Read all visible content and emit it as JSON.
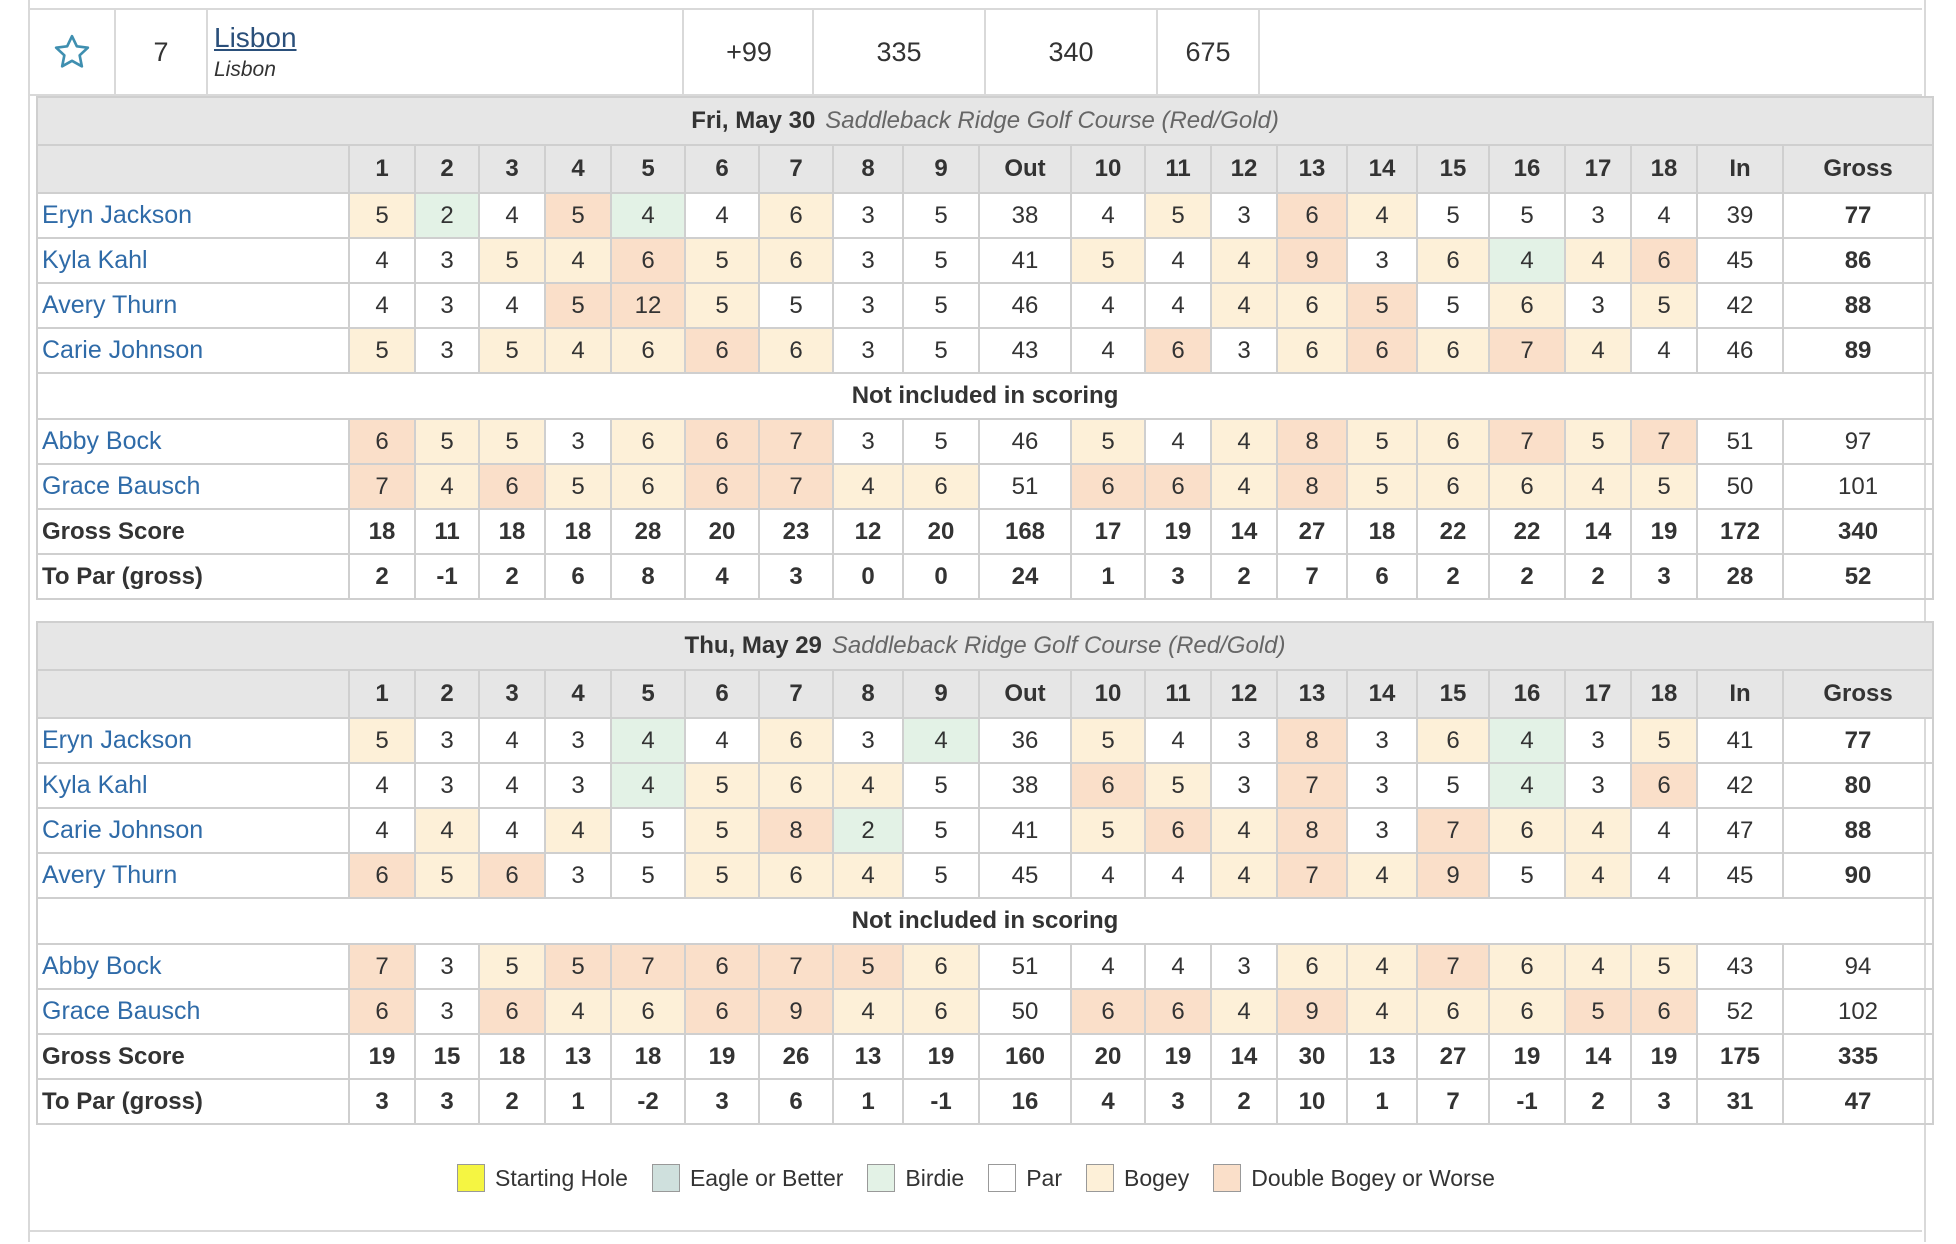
{
  "team": {
    "position": "7",
    "name": "Lisbon",
    "location": "Lisbon",
    "to_par": "+99",
    "round1": "335",
    "round2": "340",
    "total": "675"
  },
  "headers": [
    "1",
    "2",
    "3",
    "4",
    "5",
    "6",
    "7",
    "8",
    "9",
    "Out",
    "10",
    "11",
    "12",
    "13",
    "14",
    "15",
    "16",
    "17",
    "18",
    "In",
    "Gross"
  ],
  "not_included_label": "Not included in scoring",
  "gross_label": "Gross Score",
  "topar_label": "To Par (gross)",
  "rounds": [
    {
      "date": "Fri, May 30",
      "course": "Saddleback Ridge Golf Course (Red/Gold)",
      "players": [
        {
          "name": "Eryn Jackson",
          "scores": [
            "5",
            "2",
            "4",
            "5",
            "4",
            "4",
            "6",
            "3",
            "5",
            "38",
            "4",
            "5",
            "3",
            "6",
            "4",
            "5",
            "5",
            "3",
            "4",
            "39",
            "77"
          ],
          "c": [
            "b",
            "r",
            "p",
            "d",
            "r",
            "p",
            "b",
            "p",
            "p",
            "x",
            "p",
            "b",
            "p",
            "d",
            "b",
            "p",
            "p",
            "p",
            "p",
            "x",
            "x"
          ]
        },
        {
          "name": "Kyla Kahl",
          "scores": [
            "4",
            "3",
            "5",
            "4",
            "6",
            "5",
            "6",
            "3",
            "5",
            "41",
            "5",
            "4",
            "4",
            "9",
            "3",
            "6",
            "4",
            "4",
            "6",
            "45",
            "86"
          ],
          "c": [
            "p",
            "p",
            "b",
            "b",
            "d",
            "b",
            "b",
            "p",
            "p",
            "x",
            "b",
            "p",
            "b",
            "d",
            "p",
            "b",
            "r",
            "b",
            "d",
            "x",
            "x"
          ]
        },
        {
          "name": "Avery Thurn",
          "scores": [
            "4",
            "3",
            "4",
            "5",
            "12",
            "5",
            "5",
            "3",
            "5",
            "46",
            "4",
            "4",
            "4",
            "6",
            "5",
            "5",
            "6",
            "3",
            "5",
            "42",
            "88"
          ],
          "c": [
            "p",
            "p",
            "p",
            "d",
            "d",
            "b",
            "p",
            "p",
            "p",
            "x",
            "p",
            "p",
            "b",
            "b",
            "d",
            "p",
            "b",
            "p",
            "b",
            "x",
            "x"
          ]
        },
        {
          "name": "Carie Johnson",
          "scores": [
            "5",
            "3",
            "5",
            "4",
            "6",
            "6",
            "6",
            "3",
            "5",
            "43",
            "4",
            "6",
            "3",
            "6",
            "6",
            "6",
            "7",
            "4",
            "4",
            "46",
            "89"
          ],
          "c": [
            "b",
            "p",
            "b",
            "b",
            "b",
            "d",
            "b",
            "p",
            "p",
            "x",
            "p",
            "d",
            "p",
            "b",
            "d",
            "b",
            "d",
            "b",
            "p",
            "x",
            "x"
          ]
        }
      ],
      "extra": [
        {
          "name": "Abby Bock",
          "scores": [
            "6",
            "5",
            "5",
            "3",
            "6",
            "6",
            "7",
            "3",
            "5",
            "46",
            "5",
            "4",
            "4",
            "8",
            "5",
            "6",
            "7",
            "5",
            "7",
            "51",
            "97"
          ],
          "c": [
            "d",
            "b",
            "b",
            "p",
            "b",
            "d",
            "d",
            "p",
            "p",
            "x",
            "b",
            "p",
            "b",
            "d",
            "b",
            "b",
            "d",
            "b",
            "d",
            "x",
            "x"
          ]
        },
        {
          "name": "Grace Bausch",
          "scores": [
            "7",
            "4",
            "6",
            "5",
            "6",
            "6",
            "7",
            "4",
            "6",
            "51",
            "6",
            "6",
            "4",
            "8",
            "5",
            "6",
            "6",
            "4",
            "5",
            "50",
            "101"
          ],
          "c": [
            "d",
            "b",
            "d",
            "b",
            "b",
            "d",
            "d",
            "b",
            "b",
            "x",
            "d",
            "d",
            "b",
            "d",
            "b",
            "b",
            "b",
            "b",
            "b",
            "x",
            "x"
          ]
        }
      ],
      "gross": [
        "18",
        "11",
        "18",
        "18",
        "28",
        "20",
        "23",
        "12",
        "20",
        "168",
        "17",
        "19",
        "14",
        "27",
        "18",
        "22",
        "22",
        "14",
        "19",
        "172",
        "340"
      ],
      "topar": [
        "2",
        "-1",
        "2",
        "6",
        "8",
        "4",
        "3",
        "0",
        "0",
        "24",
        "1",
        "3",
        "2",
        "7",
        "6",
        "2",
        "2",
        "2",
        "3",
        "28",
        "52"
      ]
    },
    {
      "date": "Thu, May 29",
      "course": "Saddleback Ridge Golf Course (Red/Gold)",
      "players": [
        {
          "name": "Eryn Jackson",
          "scores": [
            "5",
            "3",
            "4",
            "3",
            "4",
            "4",
            "6",
            "3",
            "4",
            "36",
            "5",
            "4",
            "3",
            "8",
            "3",
            "6",
            "4",
            "3",
            "5",
            "41",
            "77"
          ],
          "c": [
            "b",
            "p",
            "p",
            "p",
            "r",
            "p",
            "b",
            "p",
            "r",
            "x",
            "b",
            "p",
            "p",
            "d",
            "p",
            "b",
            "r",
            "p",
            "b",
            "x",
            "x"
          ]
        },
        {
          "name": "Kyla Kahl",
          "scores": [
            "4",
            "3",
            "4",
            "3",
            "4",
            "5",
            "6",
            "4",
            "5",
            "38",
            "6",
            "5",
            "3",
            "7",
            "3",
            "5",
            "4",
            "3",
            "6",
            "42",
            "80"
          ],
          "c": [
            "p",
            "p",
            "p",
            "p",
            "r",
            "b",
            "b",
            "b",
            "p",
            "x",
            "d",
            "b",
            "p",
            "d",
            "p",
            "p",
            "r",
            "p",
            "d",
            "x",
            "x"
          ]
        },
        {
          "name": "Carie Johnson",
          "scores": [
            "4",
            "4",
            "4",
            "4",
            "5",
            "5",
            "8",
            "2",
            "5",
            "41",
            "5",
            "6",
            "4",
            "8",
            "3",
            "7",
            "6",
            "4",
            "4",
            "47",
            "88"
          ],
          "c": [
            "p",
            "b",
            "p",
            "b",
            "p",
            "b",
            "d",
            "r",
            "p",
            "x",
            "b",
            "d",
            "b",
            "d",
            "p",
            "d",
            "b",
            "b",
            "p",
            "x",
            "x"
          ]
        },
        {
          "name": "Avery Thurn",
          "scores": [
            "6",
            "5",
            "6",
            "3",
            "5",
            "5",
            "6",
            "4",
            "5",
            "45",
            "4",
            "4",
            "4",
            "7",
            "4",
            "9",
            "5",
            "4",
            "4",
            "45",
            "90"
          ],
          "c": [
            "d",
            "b",
            "d",
            "p",
            "p",
            "b",
            "b",
            "b",
            "p",
            "x",
            "p",
            "p",
            "b",
            "d",
            "b",
            "d",
            "p",
            "b",
            "p",
            "x",
            "x"
          ]
        }
      ],
      "extra": [
        {
          "name": "Abby Bock",
          "scores": [
            "7",
            "3",
            "5",
            "5",
            "7",
            "6",
            "7",
            "5",
            "6",
            "51",
            "4",
            "4",
            "3",
            "6",
            "4",
            "7",
            "6",
            "4",
            "5",
            "43",
            "94"
          ],
          "c": [
            "d",
            "p",
            "b",
            "d",
            "d",
            "d",
            "d",
            "d",
            "b",
            "x",
            "p",
            "p",
            "p",
            "b",
            "b",
            "d",
            "b",
            "b",
            "b",
            "x",
            "x"
          ]
        },
        {
          "name": "Grace Bausch",
          "scores": [
            "6",
            "3",
            "6",
            "4",
            "6",
            "6",
            "9",
            "4",
            "6",
            "50",
            "6",
            "6",
            "4",
            "9",
            "4",
            "6",
            "6",
            "5",
            "6",
            "52",
            "102"
          ],
          "c": [
            "d",
            "p",
            "d",
            "b",
            "b",
            "d",
            "d",
            "b",
            "b",
            "x",
            "d",
            "d",
            "b",
            "d",
            "b",
            "b",
            "b",
            "d",
            "d",
            "x",
            "x"
          ]
        }
      ],
      "gross": [
        "19",
        "15",
        "18",
        "13",
        "18",
        "19",
        "26",
        "13",
        "19",
        "160",
        "20",
        "19",
        "14",
        "30",
        "13",
        "27",
        "19",
        "14",
        "19",
        "175",
        "335"
      ],
      "topar": [
        "3",
        "3",
        "2",
        "1",
        "-2",
        "3",
        "6",
        "1",
        "-1",
        "16",
        "4",
        "3",
        "2",
        "10",
        "1",
        "7",
        "-1",
        "2",
        "3",
        "31",
        "47"
      ]
    }
  ],
  "legend": [
    {
      "label": "Starting Hole",
      "color": "#f5f542"
    },
    {
      "label": "Eagle or Better",
      "color": "#cfe0dd"
    },
    {
      "label": "Birdie",
      "color": "#e3f2e6"
    },
    {
      "label": "Par",
      "color": "#ffffff"
    },
    {
      "label": "Bogey",
      "color": "#fdf0d8"
    },
    {
      "label": "Double Bogey or Worse",
      "color": "#fadfc9"
    }
  ]
}
